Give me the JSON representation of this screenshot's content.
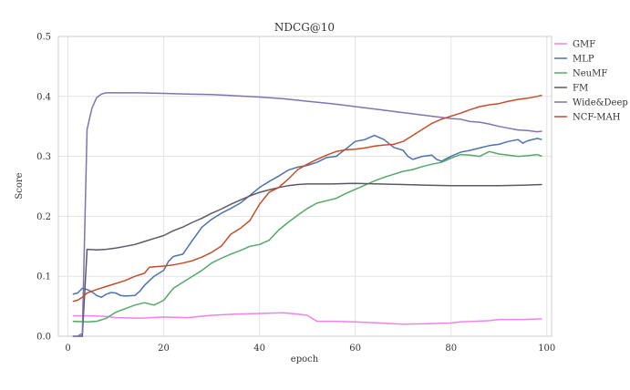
{
  "chart_data": {
    "type": "line",
    "title": "NDCG@10",
    "xlabel": "epoch",
    "ylabel": "Score",
    "xlim": [
      -2,
      101
    ],
    "ylim": [
      0,
      0.5
    ],
    "xticks": [
      0,
      20,
      40,
      60,
      80,
      100
    ],
    "yticks": [
      0.0,
      0.1,
      0.2,
      0.3,
      0.4,
      0.5
    ],
    "grid": true,
    "legend_position": "right",
    "series": [
      {
        "name": "GMF",
        "color": "#ee82ee",
        "points": [
          [
            1,
            0.034
          ],
          [
            5,
            0.034
          ],
          [
            8,
            0.033
          ],
          [
            10,
            0.031
          ],
          [
            15,
            0.03
          ],
          [
            20,
            0.032
          ],
          [
            25,
            0.031
          ],
          [
            30,
            0.035
          ],
          [
            35,
            0.037
          ],
          [
            40,
            0.038
          ],
          [
            45,
            0.039
          ],
          [
            48,
            0.037
          ],
          [
            50,
            0.035
          ],
          [
            52,
            0.025
          ],
          [
            55,
            0.025
          ],
          [
            60,
            0.024
          ],
          [
            65,
            0.022
          ],
          [
            70,
            0.02
          ],
          [
            75,
            0.021
          ],
          [
            80,
            0.022
          ],
          [
            82,
            0.024
          ],
          [
            85,
            0.025
          ],
          [
            88,
            0.026
          ],
          [
            90,
            0.028
          ],
          [
            95,
            0.028
          ],
          [
            99,
            0.029
          ]
        ]
      },
      {
        "name": "MLP",
        "color": "#4c72b0",
        "points": [
          [
            1,
            0.07
          ],
          [
            2,
            0.072
          ],
          [
            3,
            0.08
          ],
          [
            4,
            0.078
          ],
          [
            5,
            0.074
          ],
          [
            6,
            0.068
          ],
          [
            7,
            0.065
          ],
          [
            8,
            0.07
          ],
          [
            9,
            0.073
          ],
          [
            10,
            0.072
          ],
          [
            11,
            0.068
          ],
          [
            12,
            0.067
          ],
          [
            14,
            0.068
          ],
          [
            15,
            0.075
          ],
          [
            16,
            0.085
          ],
          [
            18,
            0.1
          ],
          [
            20,
            0.11
          ],
          [
            21,
            0.125
          ],
          [
            22,
            0.133
          ],
          [
            24,
            0.137
          ],
          [
            26,
            0.16
          ],
          [
            28,
            0.182
          ],
          [
            30,
            0.195
          ],
          [
            32,
            0.205
          ],
          [
            34,
            0.213
          ],
          [
            36,
            0.222
          ],
          [
            38,
            0.235
          ],
          [
            40,
            0.248
          ],
          [
            42,
            0.258
          ],
          [
            44,
            0.267
          ],
          [
            46,
            0.277
          ],
          [
            48,
            0.282
          ],
          [
            50,
            0.285
          ],
          [
            52,
            0.29
          ],
          [
            54,
            0.298
          ],
          [
            56,
            0.3
          ],
          [
            58,
            0.312
          ],
          [
            60,
            0.325
          ],
          [
            62,
            0.328
          ],
          [
            64,
            0.335
          ],
          [
            66,
            0.328
          ],
          [
            68,
            0.315
          ],
          [
            70,
            0.31
          ],
          [
            71,
            0.3
          ],
          [
            72,
            0.295
          ],
          [
            74,
            0.3
          ],
          [
            76,
            0.302
          ],
          [
            77,
            0.295
          ],
          [
            78,
            0.292
          ],
          [
            80,
            0.3
          ],
          [
            82,
            0.307
          ],
          [
            84,
            0.31
          ],
          [
            86,
            0.314
          ],
          [
            88,
            0.318
          ],
          [
            90,
            0.32
          ],
          [
            92,
            0.325
          ],
          [
            94,
            0.328
          ],
          [
            95,
            0.322
          ],
          [
            96,
            0.326
          ],
          [
            98,
            0.33
          ],
          [
            99,
            0.328
          ]
        ]
      },
      {
        "name": "NeuMF",
        "color": "#55a868",
        "points": [
          [
            1,
            0.025
          ],
          [
            4,
            0.024
          ],
          [
            6,
            0.025
          ],
          [
            8,
            0.03
          ],
          [
            10,
            0.04
          ],
          [
            12,
            0.046
          ],
          [
            14,
            0.052
          ],
          [
            16,
            0.056
          ],
          [
            18,
            0.052
          ],
          [
            20,
            0.06
          ],
          [
            22,
            0.08
          ],
          [
            24,
            0.09
          ],
          [
            26,
            0.1
          ],
          [
            28,
            0.11
          ],
          [
            30,
            0.122
          ],
          [
            32,
            0.13
          ],
          [
            34,
            0.137
          ],
          [
            36,
            0.143
          ],
          [
            38,
            0.15
          ],
          [
            40,
            0.153
          ],
          [
            42,
            0.16
          ],
          [
            44,
            0.177
          ],
          [
            46,
            0.19
          ],
          [
            48,
            0.202
          ],
          [
            50,
            0.213
          ],
          [
            52,
            0.222
          ],
          [
            54,
            0.226
          ],
          [
            56,
            0.23
          ],
          [
            58,
            0.238
          ],
          [
            60,
            0.245
          ],
          [
            62,
            0.252
          ],
          [
            64,
            0.259
          ],
          [
            66,
            0.265
          ],
          [
            68,
            0.27
          ],
          [
            70,
            0.275
          ],
          [
            72,
            0.278
          ],
          [
            74,
            0.283
          ],
          [
            76,
            0.287
          ],
          [
            78,
            0.29
          ],
          [
            80,
            0.297
          ],
          [
            82,
            0.303
          ],
          [
            84,
            0.302
          ],
          [
            86,
            0.3
          ],
          [
            88,
            0.308
          ],
          [
            90,
            0.304
          ],
          [
            92,
            0.302
          ],
          [
            94,
            0.3
          ],
          [
            96,
            0.301
          ],
          [
            98,
            0.303
          ],
          [
            99,
            0.3
          ]
        ]
      },
      {
        "name": "FM",
        "color": "#5a5a66",
        "points": [
          [
            1,
            0.0
          ],
          [
            3,
            0.0
          ],
          [
            4,
            0.145
          ],
          [
            6,
            0.144
          ],
          [
            8,
            0.145
          ],
          [
            10,
            0.147
          ],
          [
            12,
            0.15
          ],
          [
            14,
            0.153
          ],
          [
            16,
            0.158
          ],
          [
            18,
            0.163
          ],
          [
            20,
            0.168
          ],
          [
            22,
            0.176
          ],
          [
            24,
            0.182
          ],
          [
            26,
            0.19
          ],
          [
            28,
            0.197
          ],
          [
            30,
            0.205
          ],
          [
            32,
            0.212
          ],
          [
            34,
            0.22
          ],
          [
            36,
            0.227
          ],
          [
            38,
            0.234
          ],
          [
            40,
            0.24
          ],
          [
            42,
            0.244
          ],
          [
            44,
            0.248
          ],
          [
            46,
            0.251
          ],
          [
            48,
            0.253
          ],
          [
            50,
            0.254
          ],
          [
            55,
            0.254
          ],
          [
            60,
            0.255
          ],
          [
            65,
            0.254
          ],
          [
            70,
            0.253
          ],
          [
            75,
            0.252
          ],
          [
            80,
            0.251
          ],
          [
            85,
            0.251
          ],
          [
            90,
            0.251
          ],
          [
            95,
            0.252
          ],
          [
            99,
            0.253
          ]
        ]
      },
      {
        "name": "Wide&Deep",
        "color": "#8172b2",
        "points": [
          [
            1,
            0.0
          ],
          [
            2,
            0.0
          ],
          [
            3,
            0.005
          ],
          [
            4,
            0.345
          ],
          [
            5,
            0.38
          ],
          [
            6,
            0.398
          ],
          [
            7,
            0.404
          ],
          [
            8,
            0.406
          ],
          [
            10,
            0.406
          ],
          [
            15,
            0.406
          ],
          [
            20,
            0.405
          ],
          [
            25,
            0.404
          ],
          [
            30,
            0.403
          ],
          [
            35,
            0.401
          ],
          [
            40,
            0.399
          ],
          [
            45,
            0.396
          ],
          [
            50,
            0.392
          ],
          [
            55,
            0.388
          ],
          [
            60,
            0.383
          ],
          [
            65,
            0.378
          ],
          [
            70,
            0.373
          ],
          [
            75,
            0.368
          ],
          [
            80,
            0.363
          ],
          [
            82,
            0.362
          ],
          [
            84,
            0.358
          ],
          [
            86,
            0.357
          ],
          [
            88,
            0.354
          ],
          [
            90,
            0.35
          ],
          [
            92,
            0.347
          ],
          [
            94,
            0.344
          ],
          [
            96,
            0.343
          ],
          [
            98,
            0.341
          ],
          [
            99,
            0.342
          ]
        ]
      },
      {
        "name": "NCF-MAH",
        "color": "#c44e2a",
        "points": [
          [
            1,
            0.058
          ],
          [
            2,
            0.06
          ],
          [
            3,
            0.065
          ],
          [
            4,
            0.072
          ],
          [
            6,
            0.078
          ],
          [
            8,
            0.083
          ],
          [
            10,
            0.088
          ],
          [
            12,
            0.093
          ],
          [
            14,
            0.1
          ],
          [
            16,
            0.105
          ],
          [
            17,
            0.115
          ],
          [
            20,
            0.117
          ],
          [
            22,
            0.119
          ],
          [
            24,
            0.122
          ],
          [
            26,
            0.126
          ],
          [
            28,
            0.132
          ],
          [
            30,
            0.14
          ],
          [
            32,
            0.15
          ],
          [
            34,
            0.17
          ],
          [
            36,
            0.18
          ],
          [
            38,
            0.193
          ],
          [
            40,
            0.22
          ],
          [
            42,
            0.24
          ],
          [
            44,
            0.248
          ],
          [
            46,
            0.262
          ],
          [
            48,
            0.278
          ],
          [
            50,
            0.287
          ],
          [
            52,
            0.295
          ],
          [
            54,
            0.302
          ],
          [
            56,
            0.308
          ],
          [
            58,
            0.311
          ],
          [
            60,
            0.312
          ],
          [
            62,
            0.314
          ],
          [
            64,
            0.317
          ],
          [
            66,
            0.319
          ],
          [
            68,
            0.32
          ],
          [
            70,
            0.325
          ],
          [
            72,
            0.335
          ],
          [
            74,
            0.345
          ],
          [
            76,
            0.355
          ],
          [
            78,
            0.362
          ],
          [
            80,
            0.367
          ],
          [
            82,
            0.372
          ],
          [
            84,
            0.378
          ],
          [
            86,
            0.383
          ],
          [
            88,
            0.386
          ],
          [
            90,
            0.388
          ],
          [
            92,
            0.392
          ],
          [
            94,
            0.395
          ],
          [
            96,
            0.397
          ],
          [
            98,
            0.4
          ],
          [
            99,
            0.402
          ]
        ]
      }
    ]
  }
}
